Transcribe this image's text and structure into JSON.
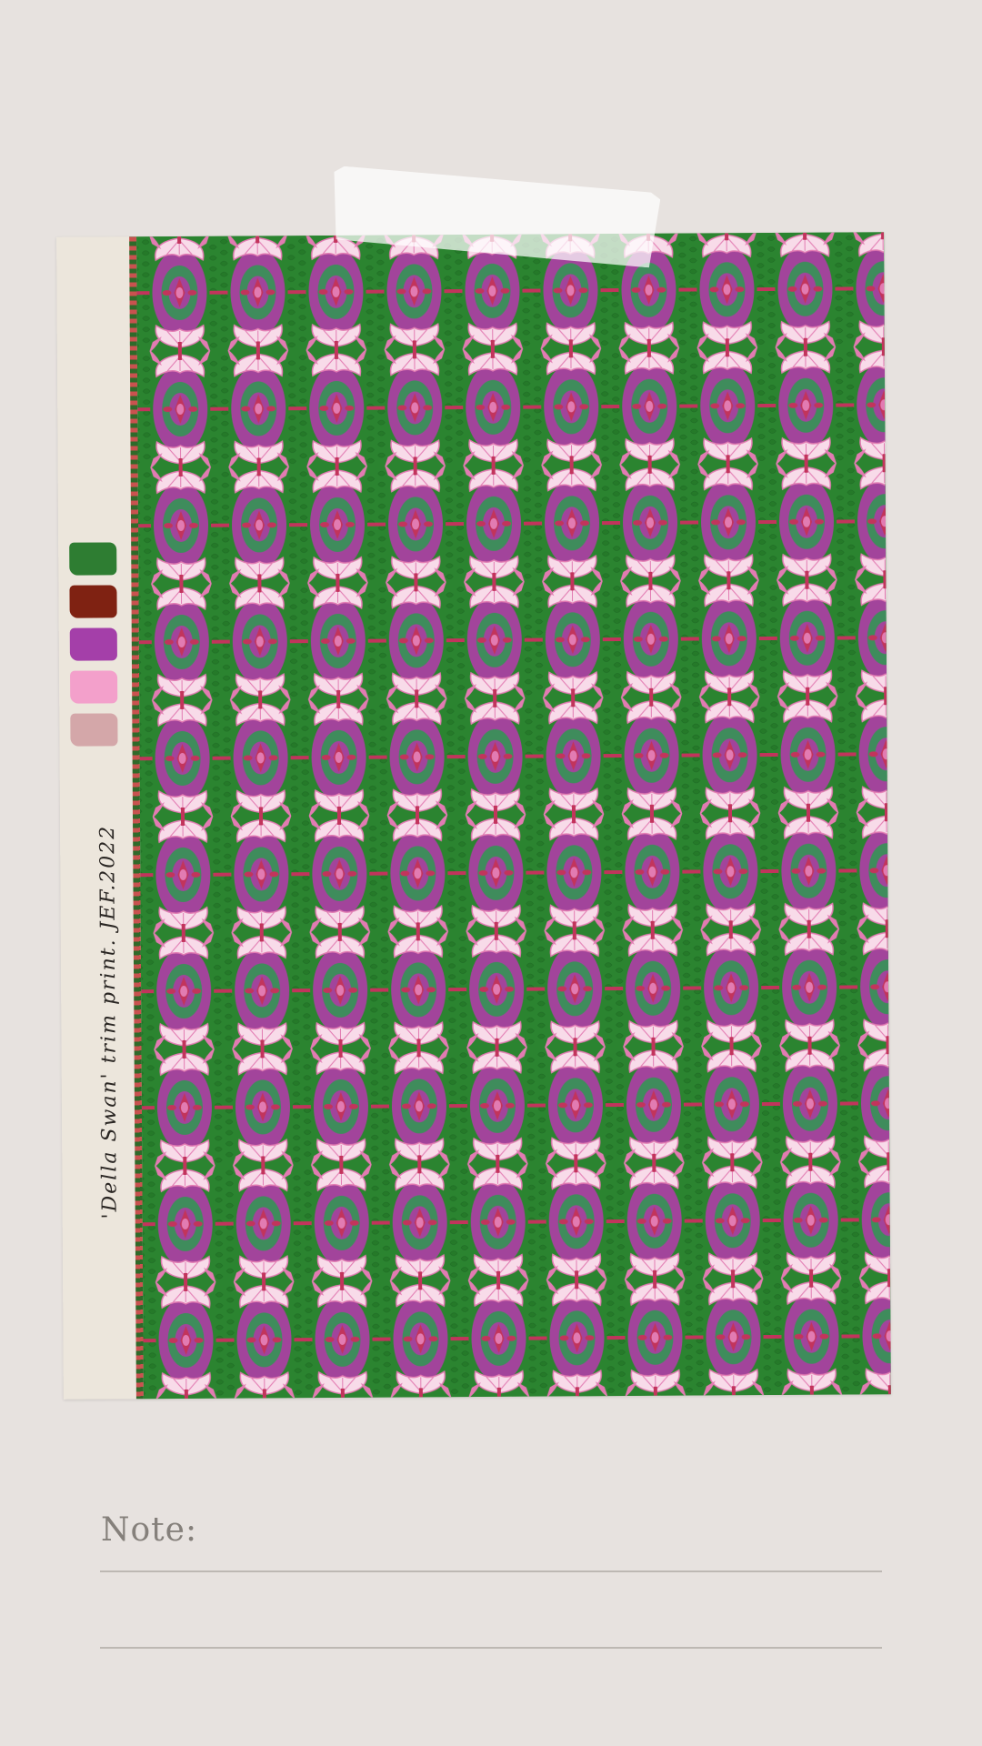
{
  "swatches": [
    {
      "name": "green",
      "color": "#2e7d32"
    },
    {
      "name": "rust",
      "color": "#7f2212"
    },
    {
      "name": "purple",
      "color": "#a43fa9"
    },
    {
      "name": "pink",
      "color": "#f3a0cb"
    },
    {
      "name": "dusty-rose",
      "color": "#d4a7a9"
    }
  ],
  "card": {
    "label": "'Della Swan' trim print. JEF.2022"
  },
  "pattern": {
    "colors": {
      "background": "#2b8430",
      "oval": "#a2449b",
      "inner": "#3f8c5c",
      "petal": "#f8dbe9",
      "petal_edge": "#e27bb2",
      "accent": "#c2345c",
      "leaf": "#257a29"
    }
  },
  "note": {
    "label": "Note:"
  }
}
